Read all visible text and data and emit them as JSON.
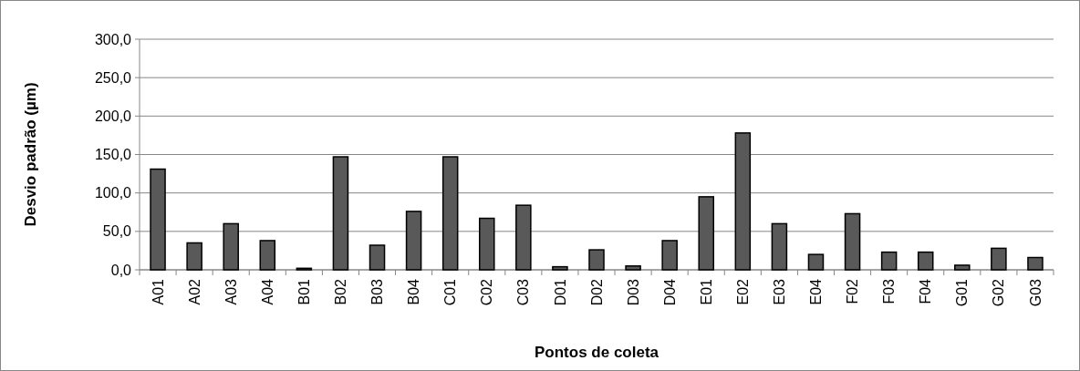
{
  "chart_data": {
    "type": "bar",
    "xlabel": "Pontos de coleta",
    "ylabel": "Desvio padrão (µm)",
    "categories": [
      "A01",
      "A02",
      "A03",
      "A04",
      "B01",
      "B02",
      "B03",
      "B04",
      "C01",
      "C02",
      "C03",
      "D01",
      "D02",
      "D03",
      "D04",
      "E01",
      "E02",
      "E03",
      "E04",
      "F02",
      "F03",
      "F04",
      "G01",
      "G02",
      "G03"
    ],
    "values": [
      131,
      35,
      60,
      38,
      2,
      147,
      32,
      76,
      147,
      67,
      84,
      4,
      26,
      5,
      38,
      95,
      178,
      60,
      20,
      73,
      23,
      23,
      6,
      28,
      16
    ],
    "color": "#595959",
    "ylim": [
      0,
      300
    ],
    "yticks": [
      {
        "value": 0,
        "label": "0,0"
      },
      {
        "value": 50,
        "label": "50,0"
      },
      {
        "value": 100,
        "label": "100,0"
      },
      {
        "value": 150,
        "label": "150,0"
      },
      {
        "value": 200,
        "label": "200,0"
      },
      {
        "value": 250,
        "label": "250,0"
      },
      {
        "value": 300,
        "label": "300,0"
      }
    ],
    "grid": "y"
  }
}
